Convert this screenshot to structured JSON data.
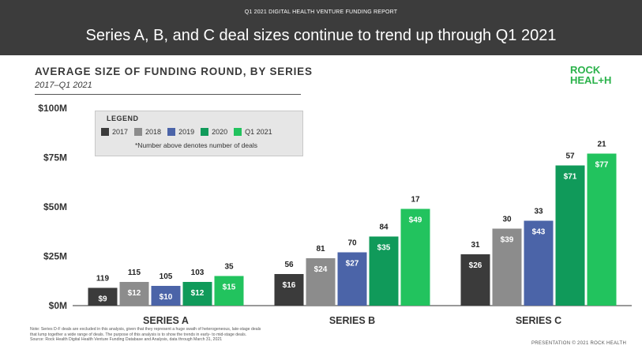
{
  "header": {
    "report_label": "Q1 2021 DIGITAL HEALTH VENTURE FUNDING REPORT",
    "headline": "Series A, B, and C deal sizes continue to trend up through Q1 2021"
  },
  "logo": {
    "line1": "ROCK",
    "line2": "HEAL+H"
  },
  "legend": {
    "title": "LEGEND",
    "note": "*Number above denotes number of deals"
  },
  "footnote": {
    "lines": [
      "Note: Series D-F deals are excluded in this analysis, given that they represent a huge swath of heterogeneous, late-stage deals",
      "that lump together a wide range of deals. The purpose of this analysis is to show the trends in early- to mid-stage deals.",
      "Source: Rock Health Digital Health Venture Funding Database and Analysis, data through March 31, 2021"
    ]
  },
  "footer": {
    "right": "PRESENTATION © 2021 ROCK HEALTH"
  },
  "chart_data": {
    "type": "bar",
    "title": "AVERAGE SIZE OF FUNDING ROUND, BY SERIES",
    "subtitle": "2017–Q1 2021",
    "categories": [
      "SERIES A",
      "SERIES B",
      "SERIES C"
    ],
    "ylim": [
      0,
      100
    ],
    "yticks": [
      "$0M",
      "$25M",
      "$50M",
      "$75M",
      "$100M"
    ],
    "grid": false,
    "legend_position": "top-left",
    "series": [
      {
        "name": "2017",
        "color": "#3b3b3b",
        "values": [
          9,
          16,
          26
        ],
        "labels": [
          "$9",
          "$16",
          "$26"
        ],
        "deals": [
          119,
          56,
          31
        ]
      },
      {
        "name": "2018",
        "color": "#8c8c8c",
        "values": [
          12,
          24,
          39
        ],
        "labels": [
          "$12",
          "$24",
          "$39"
        ],
        "deals": [
          115,
          81,
          30
        ]
      },
      {
        "name": "2019",
        "color": "#4b64a8",
        "values": [
          10,
          27,
          43
        ],
        "labels": [
          "$10",
          "$27",
          "$43"
        ],
        "deals": [
          105,
          70,
          33
        ]
      },
      {
        "name": "2020",
        "color": "#109a5a",
        "values": [
          12,
          35,
          71
        ],
        "labels": [
          "$12",
          "$35",
          "$71"
        ],
        "deals": [
          103,
          84,
          57
        ]
      },
      {
        "name": "Q1 2021",
        "color": "#22c35e",
        "values": [
          15,
          49,
          77
        ],
        "labels": [
          "$15",
          "$49",
          "$77"
        ],
        "deals": [
          35,
          17,
          21
        ]
      }
    ]
  }
}
